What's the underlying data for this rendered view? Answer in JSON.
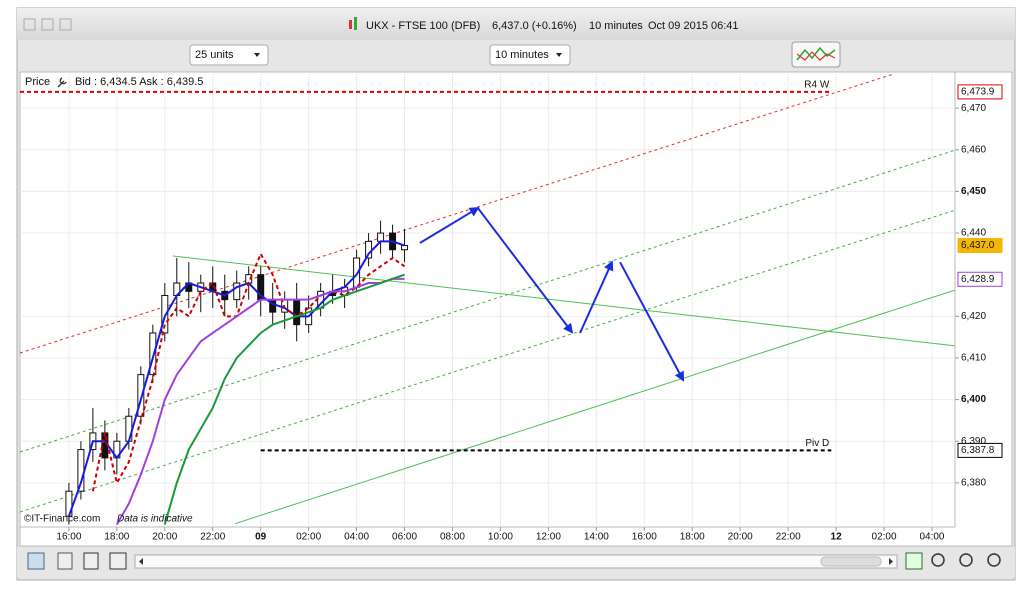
{
  "window": {
    "title": "UKX - FTSE 100 (DFB)",
    "quote": "6,437.0 (+0.16%)",
    "interval": "10 minutes",
    "timestamp": "Oct 09 2015 06:41"
  },
  "toolbar": {
    "units": "25 units",
    "interval": "10 minutes"
  },
  "chart_data": {
    "type": "candlestick",
    "price_label": "Price",
    "bid_ask": "Bid : 6,434.5 Ask : 6,439.5",
    "copyright": "©IT-Finance.com",
    "note": "Data is indicative",
    "x": [
      0,
      0.5,
      1,
      1.5,
      2,
      2.5,
      3,
      3.5,
      4,
      4.5,
      5,
      5.5,
      6,
      6.5,
      7,
      7.5,
      8,
      8.5,
      9,
      9.5,
      10,
      10.5,
      11,
      11.5,
      12,
      12.5,
      13,
      13.5,
      14
    ],
    "open": [
      6372,
      6378,
      6388,
      6392,
      6386,
      6390,
      6396,
      6406,
      6416,
      6425,
      6428,
      6426,
      6428,
      6426,
      6424,
      6428,
      6430,
      6424,
      6421,
      6424,
      6418,
      6422,
      6426,
      6425,
      6427,
      6434,
      6438,
      6440,
      6436
    ],
    "high": [
      6380,
      6390,
      6398,
      6395,
      6392,
      6398,
      6408,
      6418,
      6428,
      6434,
      6433,
      6430,
      6432,
      6430,
      6431,
      6432,
      6432,
      6428,
      6426,
      6428,
      6425,
      6428,
      6430,
      6429,
      6436,
      6440,
      6443,
      6442,
      6441
    ],
    "low": [
      6370,
      6376,
      6385,
      6383,
      6382,
      6388,
      6394,
      6404,
      6414,
      6420,
      6422,
      6421,
      6422,
      6420,
      6422,
      6424,
      6420,
      6418,
      6417,
      6414,
      6416,
      6420,
      6423,
      6422,
      6426,
      6432,
      6435,
      6434,
      6433
    ],
    "close": [
      6378,
      6388,
      6392,
      6386,
      6390,
      6396,
      6406,
      6416,
      6425,
      6428,
      6426,
      6428,
      6426,
      6424,
      6428,
      6430,
      6424,
      6421,
      6424,
      6418,
      6422,
      6426,
      6425,
      6427,
      6434,
      6438,
      6440,
      6436,
      6437
    ],
    "up_color": "#ffffff",
    "down_color": "#111111",
    "series": [
      {
        "color": "#1a1adb",
        "dash": false,
        "values": [
          6372,
          6380,
          6390,
          6390,
          6386,
          6390,
          6400,
          6410,
          6420,
          6425,
          6428,
          6427,
          6426,
          6425,
          6427,
          6428,
          6425,
          6423,
          6422,
          6420,
          6420,
          6423,
          6426,
          6427,
          6430,
          6435,
          6438,
          6438,
          6437
        ]
      },
      {
        "color": "#cc0000",
        "dash": true,
        "values": [
          null,
          null,
          6378,
          6392,
          6380,
          6385,
          6395,
          6405,
          6418,
          6422,
          6420,
          6426,
          6428,
          6420,
          6420,
          6428,
          6435,
          6430,
          6422,
          6420,
          6422,
          6425,
          6426,
          6425,
          6427,
          6430,
          6432,
          6434,
          6432
        ]
      },
      {
        "color": "#a040e0",
        "dash": false,
        "values": [
          null,
          null,
          null,
          null,
          6370,
          6375,
          6382,
          6390,
          6400,
          6406,
          6410,
          6414,
          6416,
          6418,
          6420,
          6422,
          6424,
          6424,
          6424,
          6424,
          6424,
          6425,
          6426,
          6426,
          6427,
          6428,
          6428,
          6429,
          6429
        ]
      },
      {
        "color": "#1a9a3a",
        "dash": false,
        "values": [
          null,
          null,
          null,
          null,
          null,
          null,
          null,
          null,
          6370,
          6380,
          6388,
          6393,
          6398,
          6405,
          6410,
          6413,
          6416,
          6418,
          6419,
          6420,
          6421,
          6422,
          6424,
          6425,
          6426,
          6427,
          6428,
          6429,
          6430
        ]
      }
    ],
    "trendlines": [
      {
        "color": "#e03030",
        "dash": true,
        "x": [
          -2.04,
          34.4
        ],
        "y": [
          6411.2,
          6478.2
        ]
      },
      {
        "color": "#40b040",
        "dash": true,
        "x": [
          -2.04,
          36.96
        ],
        "y": [
          6387.4,
          6459.9
        ]
      },
      {
        "color": "#40b040",
        "dash": true,
        "x": [
          -2.04,
          36.96
        ],
        "y": [
          6373.0,
          6445.5
        ]
      },
      {
        "color": "#50c050",
        "dash": false,
        "x": [
          6.93,
          36.96
        ],
        "y": [
          6370.2,
          6426.3
        ]
      },
      {
        "color": "#50c050",
        "dash": false,
        "x": [
          4.34,
          36.96
        ],
        "y": [
          6434.5,
          6412.9
        ]
      }
    ],
    "arrows": [
      {
        "x": [
          14.64,
          17.06
        ],
        "y": [
          6437.6,
          6446.0
        ]
      },
      {
        "x": [
          17.06,
          20.98
        ],
        "y": [
          6446.0,
          6416.2
        ]
      },
      {
        "x": [
          21.32,
          22.65
        ],
        "y": [
          6416.0,
          6433.0
        ]
      },
      {
        "x": [
          22.99,
          25.62
        ],
        "y": [
          6433.0,
          6404.7
        ]
      }
    ],
    "arrow_color": "#1a2ee0",
    "levels": [
      {
        "name": "R4 W",
        "value": 6473.9,
        "label": "6,473.9",
        "color": "#dd0000",
        "x": [
          -2.04,
          31.8
        ]
      },
      {
        "name": "Piv D",
        "value": 6387.8,
        "label": "6,387.8",
        "color": "#000000",
        "x": [
          8,
          31.8
        ]
      }
    ],
    "price_tags": [
      {
        "value": 6437.0,
        "label": "6,437.0",
        "color": "#f2b705"
      },
      {
        "value": 6428.9,
        "label": "6,428.9",
        "color": "#a040e0"
      }
    ],
    "xlim": [
      -2.04,
      36.96
    ],
    "ylim": [
      6369.4,
      6478.2
    ],
    "xticks": [
      {
        "value": 0,
        "label": "16:00"
      },
      {
        "value": 2,
        "label": "18:00"
      },
      {
        "value": 4,
        "label": "20:00"
      },
      {
        "value": 6,
        "label": "22:00"
      },
      {
        "value": 8,
        "label": "09",
        "bold": true
      },
      {
        "value": 10,
        "label": "02:00"
      },
      {
        "value": 12,
        "label": "04:00"
      },
      {
        "value": 14,
        "label": "06:00"
      },
      {
        "value": 16,
        "label": "08:00"
      },
      {
        "value": 18,
        "label": "10:00"
      },
      {
        "value": 20,
        "label": "12:00"
      },
      {
        "value": 22,
        "label": "14:00"
      },
      {
        "value": 24,
        "label": "16:00"
      },
      {
        "value": 26,
        "label": "18:00"
      },
      {
        "value": 28,
        "label": "20:00"
      },
      {
        "value": 30,
        "label": "22:00"
      },
      {
        "value": 32,
        "label": "12",
        "bold": true
      },
      {
        "value": 34,
        "label": "02:00"
      },
      {
        "value": 36,
        "label": "04:00"
      }
    ],
    "yticks": [
      {
        "value": 6380,
        "label": "6,380"
      },
      {
        "value": 6390,
        "label": "6,390"
      },
      {
        "value": 6400,
        "label": "6,400",
        "bold": true
      },
      {
        "value": 6410,
        "label": "6,410"
      },
      {
        "value": 6420,
        "label": "6,420"
      },
      {
        "value": 6440,
        "label": "6,440"
      },
      {
        "value": 6450,
        "label": "6,450",
        "bold": true
      },
      {
        "value": 6460,
        "label": "6,460"
      },
      {
        "value": 6470,
        "label": "6,470"
      }
    ],
    "grid": true
  }
}
